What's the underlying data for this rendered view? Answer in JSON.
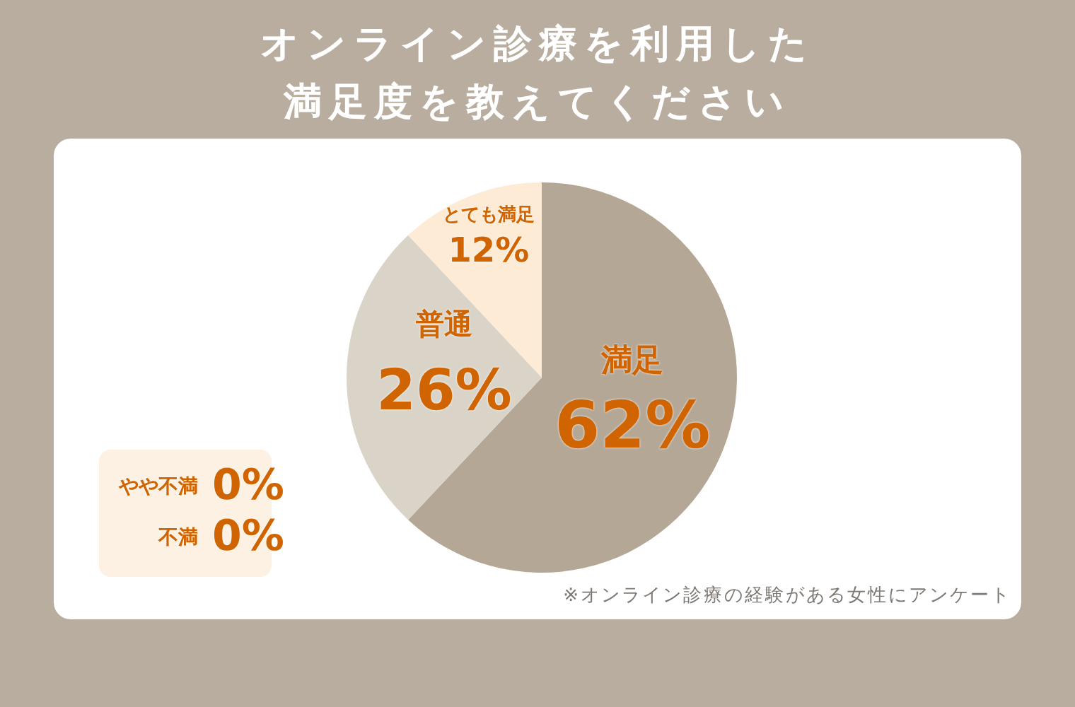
{
  "chart_data": {
    "type": "pie",
    "title": "オンライン診療を利用した満足度を教えてください",
    "categories": [
      "満足",
      "普通",
      "とても満足",
      "やや不満",
      "不満"
    ],
    "values": [
      62,
      26,
      12,
      0,
      0
    ],
    "value_labels": [
      "62%",
      "26%",
      "12%",
      "0%",
      "0%"
    ],
    "colors": [
      "#b5a795",
      "#dad3c8",
      "#fdebd5",
      "#fdf1e3",
      "#fdf1e3"
    ],
    "annotations": [
      "※オンライン診療の経験がある女性にアンケート"
    ]
  }
}
